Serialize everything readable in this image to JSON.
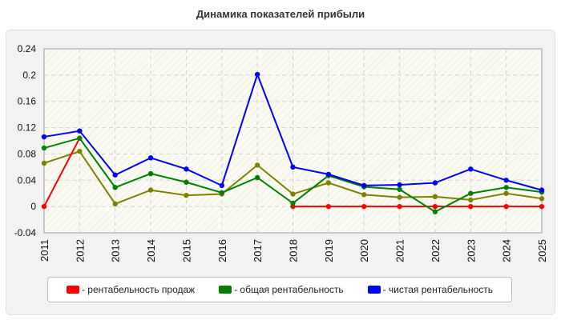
{
  "chart_data": {
    "type": "line",
    "title": "Динамика показателей прибыли",
    "xlabel": "",
    "ylabel": "",
    "x": [
      "2011",
      "2012",
      "2013",
      "2014",
      "2015",
      "2016",
      "2017",
      "2018",
      "2019",
      "2020",
      "2021",
      "2022",
      "2023",
      "2024",
      "2025"
    ],
    "ylim": [
      -0.04,
      0.24
    ],
    "yticks": [
      "-0.04",
      "0",
      "0.04",
      "0.08",
      "0.12",
      "0.16",
      "0.2",
      "0.24"
    ],
    "grid": true,
    "legend_position": "bottom",
    "series": [
      {
        "name": "рентабельность продаж",
        "color": "#ff0000",
        "show_in_legend": true,
        "values": [
          0,
          0.104,
          null,
          null,
          null,
          null,
          null,
          0,
          0,
          0,
          0,
          0,
          0,
          0,
          0
        ]
      },
      {
        "name": "общая рентабельность",
        "color": "#008000",
        "show_in_legend": true,
        "values": [
          0.089,
          0.104,
          0.029,
          0.05,
          0.037,
          0.021,
          0.044,
          0.005,
          0.047,
          0.03,
          0.026,
          -0.008,
          0.02,
          0.029,
          0.022
        ]
      },
      {
        "name": "чистая рентабельность",
        "color": "#0000ff",
        "show_in_legend": true,
        "values": [
          0.106,
          0.115,
          0.048,
          0.074,
          0.057,
          0.032,
          0.201,
          0.06,
          0.049,
          0.032,
          0.033,
          0.036,
          0.057,
          0.04,
          0.025
        ]
      },
      {
        "name": "",
        "color": "#808000",
        "show_in_legend": false,
        "values": [
          0.066,
          0.084,
          0.004,
          0.025,
          0.017,
          0.019,
          0.063,
          0.019,
          0.036,
          0.018,
          0.014,
          0.015,
          0.01,
          0.02,
          0.012
        ]
      }
    ]
  }
}
